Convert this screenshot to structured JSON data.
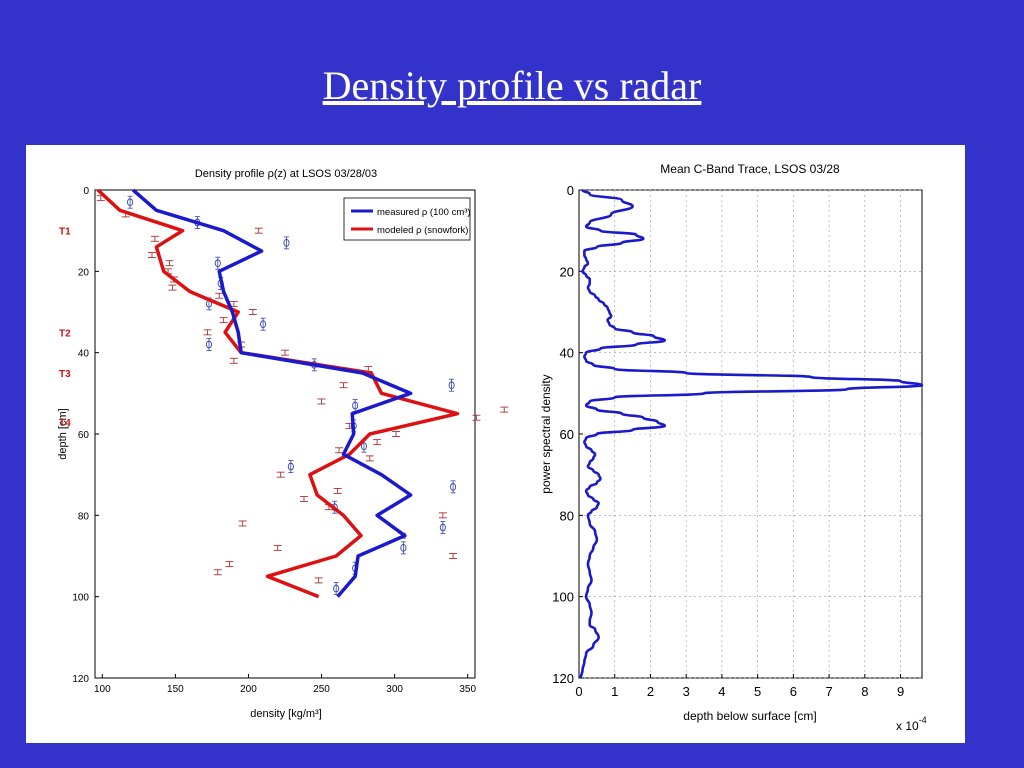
{
  "slide": {
    "title": "Density profile vs radar"
  },
  "chart_data": [
    {
      "type": "line",
      "title": "Density profile ρ(z) at LSOS 03/28/03",
      "xlabel": "density [kg/m³]",
      "ylabel": "depth [cm]",
      "xlim": [
        95,
        355
      ],
      "ylim": [
        120,
        0
      ],
      "x_ticks": [
        "100",
        "150",
        "200",
        "250",
        "300",
        "350"
      ],
      "y_ticks": [
        "0",
        "20",
        "40",
        "60",
        "80",
        "100",
        "120"
      ],
      "legend": "top-right",
      "grid": false,
      "markers": [
        {
          "label": "T1",
          "depth": 10
        },
        {
          "label": "T2",
          "depth": 35
        },
        {
          "label": "T3",
          "depth": 45
        },
        {
          "label": "T4",
          "depth": 57
        }
      ],
      "series": [
        {
          "name": "measured ρ (100 cm³)",
          "color": "#1a1acc",
          "depth": [
            0,
            5,
            10,
            15,
            20,
            25,
            30,
            35,
            40,
            45,
            50,
            55,
            60,
            65,
            70,
            75,
            80,
            85,
            90,
            95,
            100
          ],
          "density": [
            121,
            137,
            183,
            209,
            180,
            183,
            189,
            193,
            195,
            278,
            311,
            271,
            272,
            265,
            291,
            311,
            288,
            307,
            275,
            273,
            261
          ]
        },
        {
          "name": "modeled ρ (snowfork)",
          "color": "#dd1111",
          "depth": [
            0,
            5,
            10,
            14,
            20,
            25,
            30,
            35,
            40,
            45,
            50,
            55,
            60,
            65,
            70,
            75,
            80,
            85,
            90,
            95,
            100
          ],
          "density": [
            97,
            112,
            155,
            137,
            142,
            160,
            193,
            184,
            195,
            284,
            291,
            343,
            283,
            269,
            242,
            247,
            265,
            277,
            260,
            213,
            248
          ]
        }
      ],
      "measured_points": [
        {
          "depth": 3,
          "density": 119
        },
        {
          "depth": 8,
          "density": 165
        },
        {
          "depth": 13,
          "density": 226
        },
        {
          "depth": 18,
          "density": 179
        },
        {
          "depth": 23,
          "density": 181
        },
        {
          "depth": 28,
          "density": 173
        },
        {
          "depth": 33,
          "density": 210
        },
        {
          "depth": 38,
          "density": 173
        },
        {
          "depth": 43,
          "density": 245
        },
        {
          "depth": 48,
          "density": 339
        },
        {
          "depth": 53,
          "density": 273
        },
        {
          "depth": 58,
          "density": 272
        },
        {
          "depth": 63,
          "density": 279
        },
        {
          "depth": 68,
          "density": 229
        },
        {
          "depth": 73,
          "density": 340
        },
        {
          "depth": 78,
          "density": 259
        },
        {
          "depth": 83,
          "density": 333
        },
        {
          "depth": 88,
          "density": 306
        },
        {
          "depth": 93,
          "density": 273
        },
        {
          "depth": 98,
          "density": 260
        }
      ],
      "modeled_points": [
        {
          "depth": 2,
          "density": 99
        },
        {
          "depth": 6,
          "density": 116
        },
        {
          "depth": 10,
          "density": 207
        },
        {
          "depth": 12,
          "density": 136
        },
        {
          "depth": 16,
          "density": 134
        },
        {
          "depth": 18,
          "density": 146
        },
        {
          "depth": 20,
          "density": 145
        },
        {
          "depth": 22,
          "density": 149
        },
        {
          "depth": 24,
          "density": 148
        },
        {
          "depth": 26,
          "density": 180
        },
        {
          "depth": 28,
          "density": 190
        },
        {
          "depth": 30,
          "density": 203
        },
        {
          "depth": 32,
          "density": 183
        },
        {
          "depth": 35,
          "density": 172
        },
        {
          "depth": 38,
          "density": 195
        },
        {
          "depth": 40,
          "density": 225
        },
        {
          "depth": 42,
          "density": 190
        },
        {
          "depth": 44,
          "density": 282
        },
        {
          "depth": 48,
          "density": 265
        },
        {
          "depth": 52,
          "density": 250
        },
        {
          "depth": 54,
          "density": 375
        },
        {
          "depth": 56,
          "density": 356
        },
        {
          "depth": 58,
          "density": 269
        },
        {
          "depth": 60,
          "density": 301
        },
        {
          "depth": 62,
          "density": 288
        },
        {
          "depth": 64,
          "density": 262
        },
        {
          "depth": 66,
          "density": 283
        },
        {
          "depth": 70,
          "density": 222
        },
        {
          "depth": 74,
          "density": 261
        },
        {
          "depth": 76,
          "density": 238
        },
        {
          "depth": 78,
          "density": 255
        },
        {
          "depth": 80,
          "density": 333
        },
        {
          "depth": 82,
          "density": 196
        },
        {
          "depth": 85,
          "density": 305
        },
        {
          "depth": 88,
          "density": 220
        },
        {
          "depth": 90,
          "density": 340
        },
        {
          "depth": 92,
          "density": 187
        },
        {
          "depth": 94,
          "density": 179
        },
        {
          "depth": 96,
          "density": 248
        }
      ]
    },
    {
      "type": "line",
      "title": "Mean C-Band Trace, LSOS 03/28",
      "xlabel": "depth below surface [cm]",
      "ylabel": "power spectral density",
      "x_multiplier": "x 10",
      "x_multiplier_exp": "-4",
      "xlim": [
        0,
        9.6
      ],
      "ylim": [
        120,
        0
      ],
      "x_ticks": [
        "0",
        "1",
        "2",
        "3",
        "4",
        "5",
        "6",
        "7",
        "8",
        "9"
      ],
      "y_ticks": [
        "0",
        "20",
        "40",
        "60",
        "80",
        "100",
        "120"
      ],
      "grid": true,
      "series": [
        {
          "name": "",
          "color": "#1a1acc",
          "depth": [
            0,
            1,
            2.5,
            4,
            6,
            8,
            9,
            10,
            11,
            12,
            13,
            14,
            15,
            16,
            17,
            18,
            19,
            20,
            21,
            22,
            23,
            24,
            25,
            26,
            27,
            28,
            29,
            30,
            31,
            32,
            33,
            34,
            35,
            36,
            37,
            38,
            39,
            40,
            41,
            42,
            43,
            44,
            45,
            46,
            47,
            48,
            49,
            50,
            51,
            52,
            53,
            54,
            55,
            56,
            57,
            58,
            59,
            60,
            61,
            62,
            63,
            64,
            65,
            66,
            67,
            68,
            69,
            70,
            71,
            72,
            73,
            74,
            75,
            76,
            77,
            78,
            79,
            80,
            82,
            84,
            86,
            88,
            90,
            92,
            94,
            96,
            98,
            100,
            102,
            104,
            106,
            107,
            108,
            110,
            112,
            114,
            116,
            118,
            120
          ],
          "psd": [
            0.1,
            0.3,
            1.2,
            1.5,
            0.9,
            0.3,
            0.2,
            0.6,
            1.6,
            1.8,
            1.2,
            0.5,
            0.15,
            0.15,
            0.2,
            0.25,
            0.15,
            0.1,
            0.2,
            0.3,
            0.3,
            0.25,
            0.3,
            0.45,
            0.55,
            0.7,
            0.8,
            0.85,
            0.9,
            0.8,
            0.85,
            1.0,
            1.5,
            2.1,
            2.4,
            1.6,
            0.6,
            0.2,
            0.15,
            0.2,
            0.4,
            1.0,
            3.0,
            6.5,
            9.0,
            9.6,
            7.5,
            3.5,
            1.0,
            0.3,
            0.2,
            0.5,
            1.2,
            1.8,
            2.2,
            2.4,
            1.5,
            0.5,
            0.2,
            0.15,
            0.2,
            0.35,
            0.45,
            0.4,
            0.3,
            0.25,
            0.4,
            0.55,
            0.6,
            0.5,
            0.3,
            0.2,
            0.25,
            0.4,
            0.55,
            0.5,
            0.35,
            0.25,
            0.3,
            0.45,
            0.5,
            0.4,
            0.3,
            0.25,
            0.3,
            0.35,
            0.25,
            0.2,
            0.3,
            0.35,
            0.3,
            0.3,
            0.45,
            0.55,
            0.4,
            0.2,
            0.15,
            0.1,
            0.05
          ]
        }
      ]
    }
  ]
}
